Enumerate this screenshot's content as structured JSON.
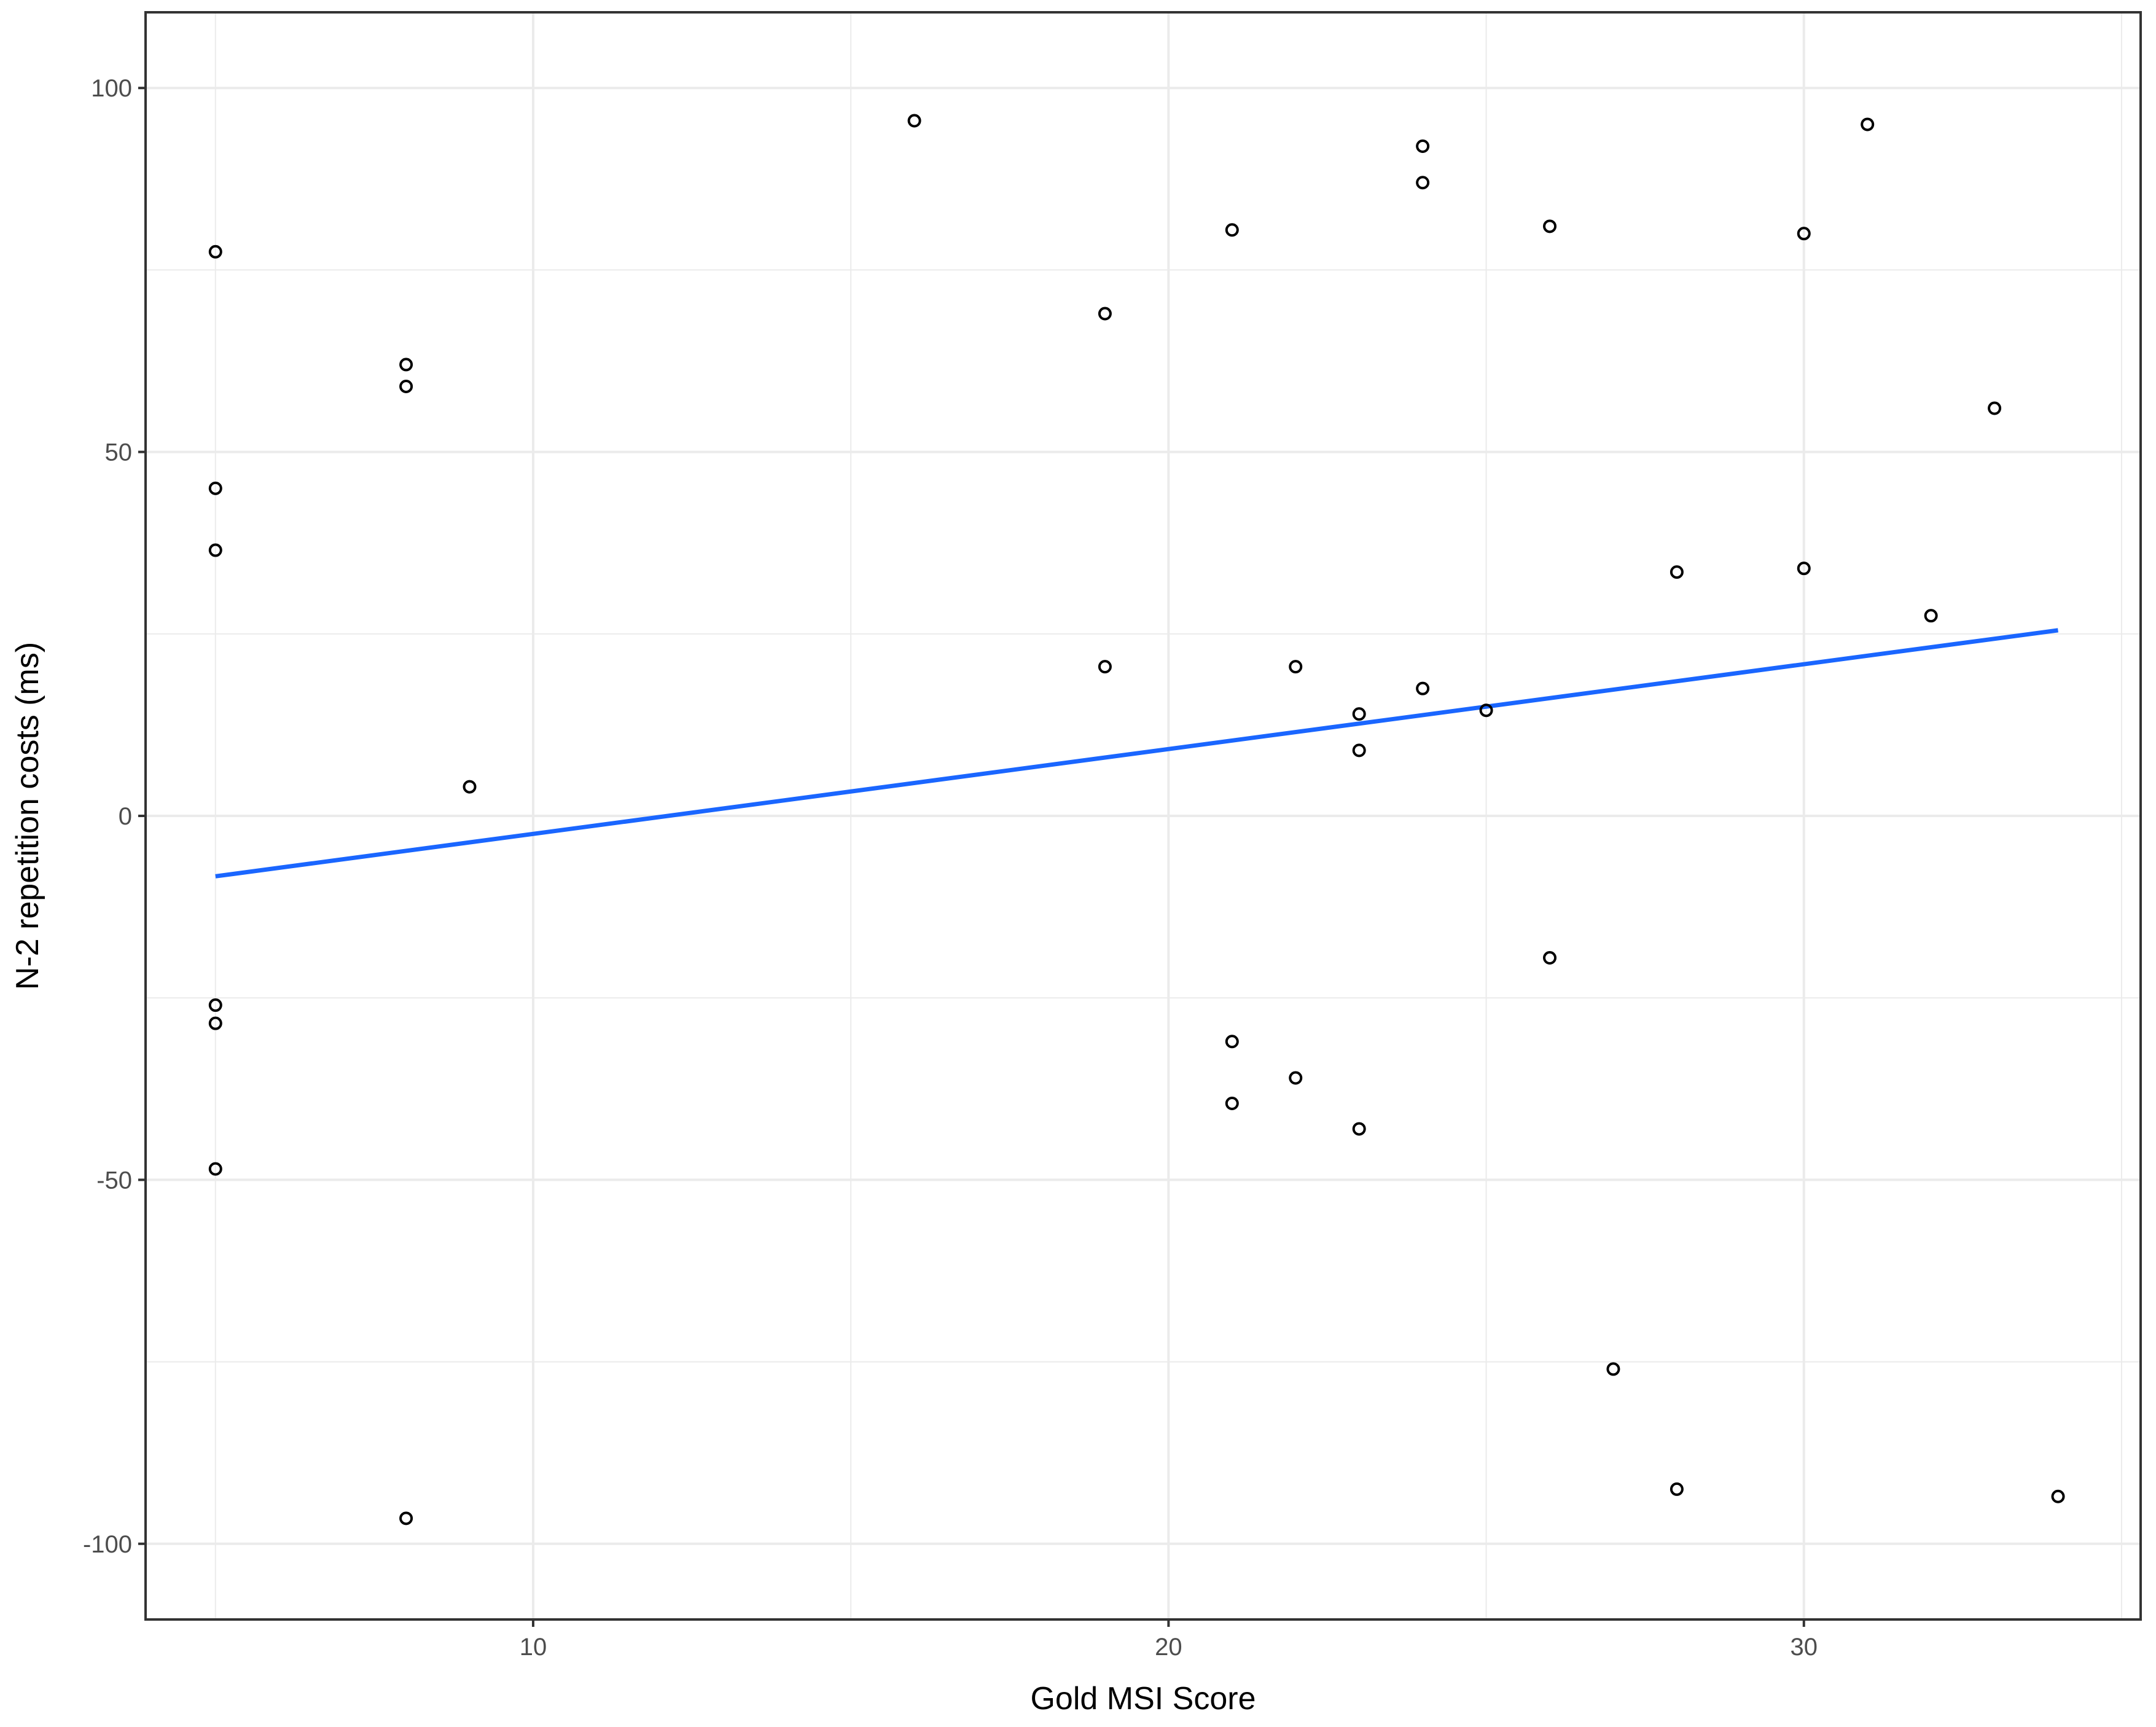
{
  "chart_data": {
    "type": "scatter",
    "xlabel": "Gold MSI Score",
    "ylabel": "N-2 repetition costs (ms)",
    "xlim": [
      3.9,
      35.3
    ],
    "ylim": [
      -110.4,
      110.4
    ],
    "x_ticks": [
      10,
      20,
      30
    ],
    "x_tick_labels": [
      "10",
      "20",
      "30"
    ],
    "y_ticks": [
      -100,
      -50,
      0,
      50,
      100
    ],
    "y_tick_labels": [
      "-100",
      "-50",
      "0",
      "50",
      "100"
    ],
    "grid": true,
    "point_shape": "open-circle",
    "points": [
      {
        "x": 5,
        "y": 77.5
      },
      {
        "x": 5,
        "y": 45
      },
      {
        "x": 5,
        "y": 36.5
      },
      {
        "x": 5,
        "y": -26
      },
      {
        "x": 5,
        "y": -28.5
      },
      {
        "x": 5,
        "y": -48.5
      },
      {
        "x": 8,
        "y": 62
      },
      {
        "x": 8,
        "y": 59
      },
      {
        "x": 8,
        "y": -96.5
      },
      {
        "x": 9,
        "y": 4
      },
      {
        "x": 16,
        "y": 95.5
      },
      {
        "x": 19,
        "y": 69
      },
      {
        "x": 19,
        "y": 20.5
      },
      {
        "x": 21,
        "y": 80.5
      },
      {
        "x": 21,
        "y": -31
      },
      {
        "x": 21,
        "y": -39.5
      },
      {
        "x": 22,
        "y": 20.5
      },
      {
        "x": 22,
        "y": -36
      },
      {
        "x": 23,
        "y": 14
      },
      {
        "x": 23,
        "y": 9
      },
      {
        "x": 23,
        "y": -43
      },
      {
        "x": 24,
        "y": 92
      },
      {
        "x": 24,
        "y": 87
      },
      {
        "x": 24,
        "y": 17.5
      },
      {
        "x": 25,
        "y": 14.5
      },
      {
        "x": 26,
        "y": 81
      },
      {
        "x": 26,
        "y": -19.5
      },
      {
        "x": 27,
        "y": -76
      },
      {
        "x": 28,
        "y": 33.5
      },
      {
        "x": 28,
        "y": -92.5
      },
      {
        "x": 30,
        "y": 80
      },
      {
        "x": 30,
        "y": 34
      },
      {
        "x": 31,
        "y": 95
      },
      {
        "x": 32,
        "y": 27.5
      },
      {
        "x": 33,
        "y": 56
      },
      {
        "x": 34,
        "y": -93.5
      }
    ],
    "trend_line": {
      "x": [
        5,
        34
      ],
      "y": [
        -8.3,
        25.5
      ],
      "color": "#1a66ff"
    },
    "colors": {
      "points": "#000000",
      "grid": "#ebebeb",
      "border": "#333333"
    }
  }
}
